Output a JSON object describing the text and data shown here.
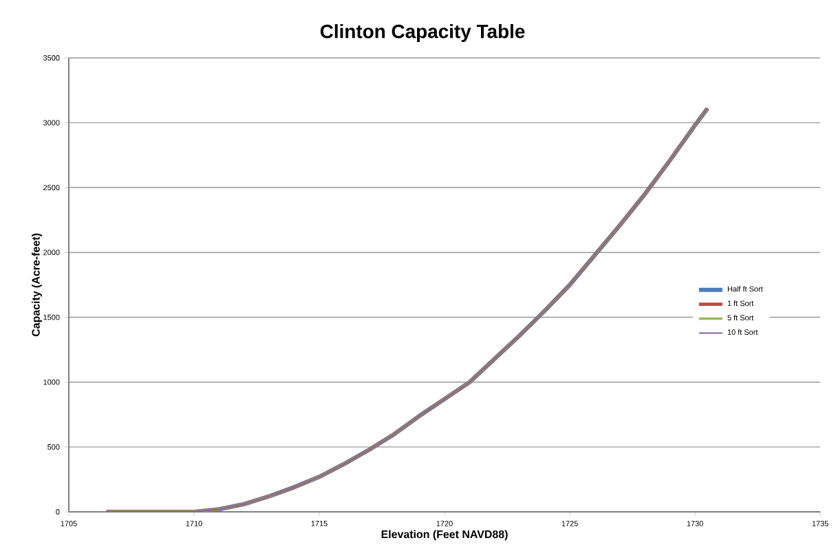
{
  "chart_data": {
    "type": "line",
    "title": "Clinton Capacity Table",
    "xlabel": "Elevation (Feet NAVD88)",
    "ylabel": "Capacity (Acre-feet)",
    "x": [
      1706.5,
      1708,
      1710,
      1711,
      1712,
      1713,
      1714,
      1715,
      1716,
      1717,
      1718,
      1719,
      1720,
      1721,
      1722,
      1723,
      1724,
      1725,
      1726,
      1727,
      1728,
      1729,
      1730,
      1730.5
    ],
    "series": [
      {
        "name": "Half ft Sort",
        "color": "#4a7ebb",
        "values": [
          0,
          0,
          0,
          20,
          60,
          120,
          190,
          270,
          370,
          480,
          600,
          740,
          870,
          1000,
          1180,
          1360,
          1550,
          1750,
          1980,
          2210,
          2450,
          2710,
          2980,
          3110
        ]
      },
      {
        "name": "1 ft Sort",
        "color": "#be4b48",
        "values": [
          0,
          0,
          0,
          20,
          60,
          120,
          190,
          270,
          370,
          480,
          600,
          740,
          870,
          1000,
          1180,
          1360,
          1550,
          1750,
          1980,
          2210,
          2450,
          2710,
          2980,
          3110
        ]
      },
      {
        "name": "5 ft Sort",
        "color": "#98b954",
        "values": [
          0,
          0,
          0,
          20,
          60,
          120,
          190,
          270,
          370,
          480,
          600,
          740,
          870,
          1000,
          1180,
          1360,
          1550,
          1750,
          1980,
          2210,
          2450,
          2710,
          2980,
          3110
        ]
      },
      {
        "name": "10 ft Sort",
        "color": "#7d60a0",
        "values": [
          0,
          0,
          0,
          20,
          60,
          120,
          190,
          270,
          370,
          480,
          600,
          740,
          870,
          1000,
          1180,
          1360,
          1550,
          1750,
          1980,
          2210,
          2450,
          2710,
          2980,
          3110
        ]
      }
    ],
    "xlim": [
      1705,
      1735
    ],
    "xticks": [
      1705,
      1710,
      1715,
      1720,
      1725,
      1730,
      1735
    ],
    "ylim": [
      0,
      3500
    ],
    "yticks": [
      0,
      500,
      1000,
      1500,
      2000,
      2500,
      3000,
      3500
    ],
    "grid": "y",
    "legend": "right",
    "marker": "none",
    "line_style": "solid"
  }
}
